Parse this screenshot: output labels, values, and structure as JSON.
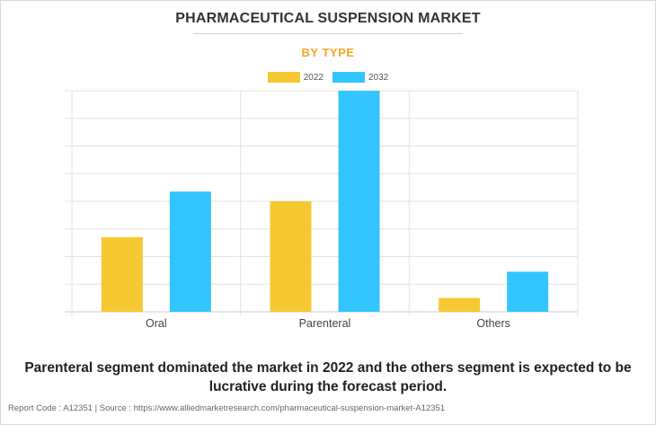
{
  "header": {
    "title": "PHARMACEUTICAL SUSPENSION MARKET",
    "subtitle": "BY TYPE"
  },
  "caption": {
    "line1": "Parenteral segment dominated the market in 2022 and the others segment is expected to be",
    "line2": "lucrative during the forecast period."
  },
  "footer": {
    "text": "Report Code : A12351  |  Source : https://www.alliedmarketresearch.com/pharmaceutical-suspension-market-A12351"
  },
  "colors": {
    "series_2022": "#F5C831",
    "series_2032": "#33C5FF",
    "subtitle": "#F5A623",
    "grid": "#e3e3e3",
    "axis": "#cccccc"
  },
  "chart_data": {
    "type": "bar",
    "title": "PHARMACEUTICAL SUSPENSION MARKET",
    "subtitle": "BY TYPE",
    "categories": [
      "Oral",
      "Parenteral",
      "Others"
    ],
    "series": [
      {
        "name": "2022",
        "values": [
          2.7,
          4.0,
          0.5
        ]
      },
      {
        "name": "2032",
        "values": [
          4.35,
          8.0,
          1.45
        ]
      }
    ],
    "ylim": [
      0,
      8
    ],
    "grid": true,
    "legend": "top-center",
    "xlabel": "",
    "ylabel": ""
  }
}
